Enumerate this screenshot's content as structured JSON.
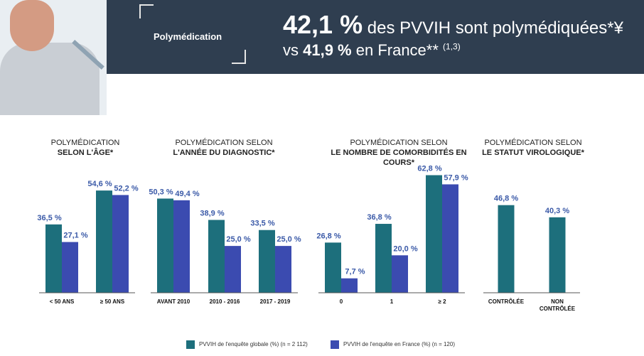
{
  "header": {
    "label": "Polymédication",
    "line1_big": "42,1 %",
    "line1_rest": " des PVVIH sont polymédiquées*¥",
    "line2_prefix": "vs ",
    "line2_bold": "41,9 %",
    "line2_rest": " en France** ",
    "line2_ref": "(1,3)"
  },
  "colors": {
    "teal": "#1d6f7c",
    "blue": "#3b4bb0",
    "header_bg": "#2f3e50",
    "label": "#3b5aa8"
  },
  "chart_data": [
    {
      "type": "bar",
      "title_line1": "POLYMÉDICATION",
      "title_line2": "SELON L'ÂGE*",
      "categories": [
        "< 50 ANS",
        "≥ 50 ANS"
      ],
      "series": [
        {
          "name": "PVVIH de l'enquête globale (%) (n = 2 112)",
          "values": [
            36.5,
            54.6
          ],
          "labels": [
            "36,5 %",
            "54,6 %"
          ]
        },
        {
          "name": "PVVIH de l'enquête en France (%) (n = 120)",
          "values": [
            27.1,
            52.2
          ],
          "labels": [
            "27,1 %",
            "52,2 %"
          ]
        }
      ],
      "ylim": [
        0,
        70
      ]
    },
    {
      "type": "bar",
      "title_line1": "POLYMÉDICATION SELON",
      "title_line2": "L'ANNÉE DU DIAGNOSTIC*",
      "categories": [
        "AVANT 2010",
        "2010 - 2016",
        "2017 - 2019"
      ],
      "series": [
        {
          "name": "PVVIH de l'enquête globale (%) (n = 2 112)",
          "values": [
            50.3,
            38.9,
            33.5
          ],
          "labels": [
            "50,3 %",
            "38,9 %",
            "33,5 %"
          ]
        },
        {
          "name": "PVVIH de l'enquête en France (%) (n = 120)",
          "values": [
            49.4,
            25.0,
            25.0
          ],
          "labels": [
            "49,4 %",
            "25,0 %",
            "25,0 %"
          ]
        }
      ],
      "ylim": [
        0,
        70
      ]
    },
    {
      "type": "bar",
      "title_line1": "POLYMÉDICATION SELON",
      "title_line2": "LE NOMBRE DE COMORBIDITÉS EN COURS*",
      "categories": [
        "0",
        "1",
        "≥ 2"
      ],
      "series": [
        {
          "name": "PVVIH de l'enquête globale (%) (n = 2 112)",
          "values": [
            26.8,
            36.8,
            62.8
          ],
          "labels": [
            "26,8 %",
            "36,8 %",
            "62,8 %"
          ]
        },
        {
          "name": "PVVIH de l'enquête en France (%) (n = 120)",
          "values": [
            7.7,
            20.0,
            57.9
          ],
          "labels": [
            "7,7 %",
            "20,0 %",
            "57,9 %"
          ]
        }
      ],
      "ylim": [
        0,
        70
      ]
    },
    {
      "type": "bar",
      "title_line1": "POLYMÉDICATION SELON",
      "title_line2": "LE STATUT VIROLOGIQUE*",
      "categories": [
        "CONTRÔLÉE",
        "NON CONTRÔLÉE"
      ],
      "series": [
        {
          "name": "PVVIH de l'enquête globale (%) (n = 2 112)",
          "values": [
            46.8,
            40.3
          ],
          "labels": [
            "46,8 %",
            "40,3 %"
          ]
        }
      ],
      "ylim": [
        0,
        70
      ]
    }
  ],
  "legend": [
    {
      "label": "PVVIH de l'enquête globale (%) (n = 2 112)",
      "color": "#1d6f7c"
    },
    {
      "label": "PVVIH de l'enquête en France (%) (n = 120)",
      "color": "#3b4bb0"
    }
  ]
}
